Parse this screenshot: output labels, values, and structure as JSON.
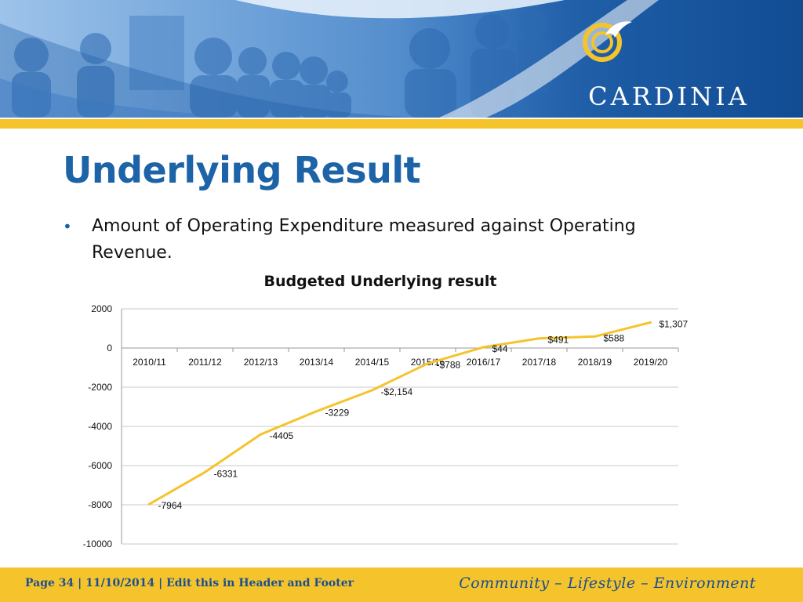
{
  "header": {
    "brand_name": "CARDINIA",
    "logo_icon": "bird-swirl-logo-icon",
    "colors": {
      "banner": "#1b5aa3",
      "accent": "#f5c42c"
    }
  },
  "slide": {
    "title": "Underlying Result",
    "bullet": "Amount of Operating Expenditure measured against Operating Revenue."
  },
  "chart_data": {
    "type": "line",
    "title": "Budgeted Underlying result",
    "xlabel": "",
    "ylabel": "",
    "categories": [
      "2010/11",
      "2011/12",
      "2012/13",
      "2013/14",
      "2014/15",
      "2015/16",
      "2016/17",
      "2017/18",
      "2018/19",
      "2019/20"
    ],
    "series": [
      {
        "values": [
          -7964,
          -6331,
          -4405,
          -3229,
          -2154,
          -788,
          44,
          491,
          588,
          1307
        ],
        "data_labels": [
          "-7964",
          "-6331",
          "-4405",
          "-3229",
          "-$2,154",
          "-$788",
          "$44",
          "$491",
          "$588",
          "$1,307"
        ],
        "color": "#f5c42c"
      }
    ],
    "ylim": [
      -10000,
      2000
    ],
    "yticks": [
      2000,
      0,
      -2000,
      -4000,
      -6000,
      -8000,
      -10000
    ],
    "grid": true,
    "legend": "none"
  },
  "footer": {
    "left_text": "Page 34 | 11/10/2014 | Edit this in Header and Footer",
    "right_text": "Community – Lifestyle – Environment"
  }
}
